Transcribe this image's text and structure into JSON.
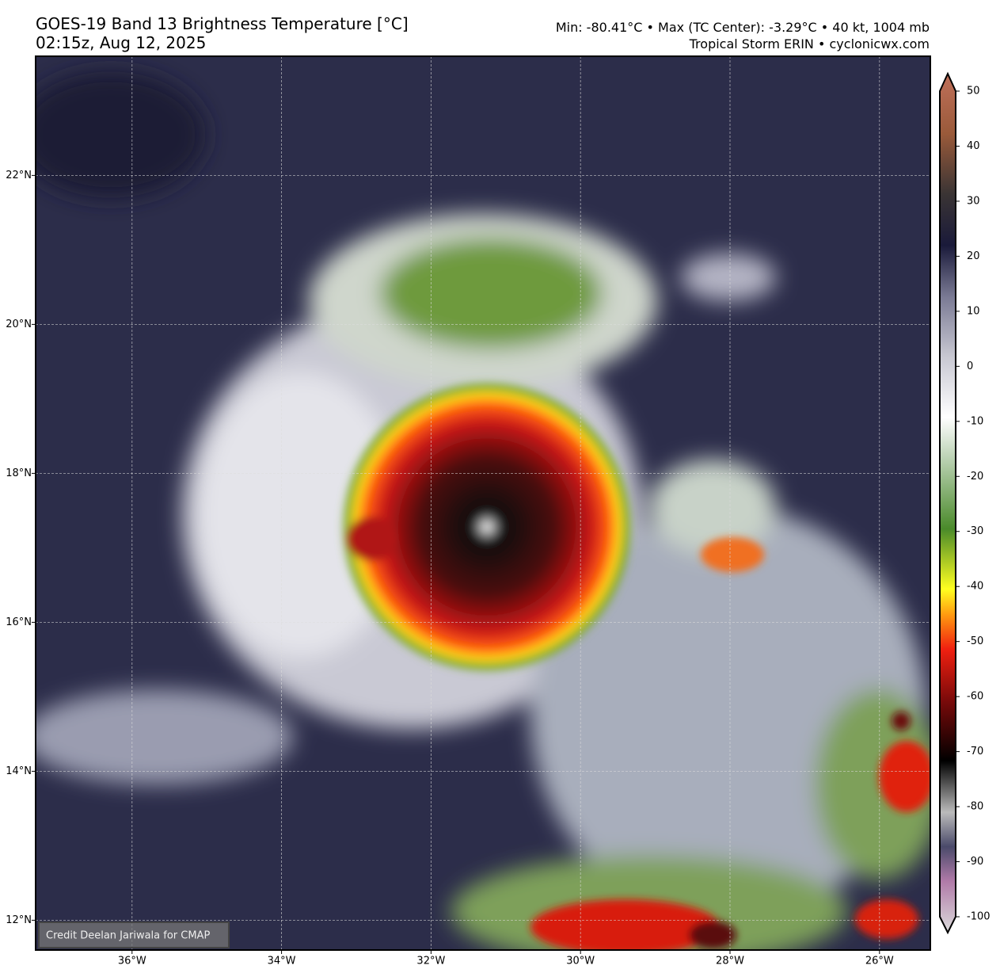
{
  "header": {
    "title": "GOES-19 Band 13 Brightness Temperature [°C]",
    "time": "02:15z, Aug 12, 2025",
    "stats": "Min: -80.41°C • Max (TC Center): -3.29°C • 40 kt, 1004 mb",
    "storm": "Tropical Storm ERIN • cyclonicwx.com"
  },
  "map": {
    "xlim": [
      -37.29,
      -25.32
    ],
    "ylim": [
      11.6,
      23.6
    ],
    "xticks": [
      {
        "value": -36,
        "label": "36°W"
      },
      {
        "value": -34,
        "label": "34°W"
      },
      {
        "value": -32,
        "label": "32°W"
      },
      {
        "value": -30,
        "label": "30°W"
      },
      {
        "value": -28,
        "label": "28°W"
      },
      {
        "value": -26,
        "label": "26°W"
      }
    ],
    "yticks": [
      {
        "value": 12,
        "label": "12°N"
      },
      {
        "value": 14,
        "label": "14°N"
      },
      {
        "value": 16,
        "label": "16°N"
      },
      {
        "value": 18,
        "label": "18°N"
      },
      {
        "value": 20,
        "label": "20°N"
      },
      {
        "value": 22,
        "label": "22°N"
      }
    ],
    "grid": true,
    "credit": "Credit Deelan Jariwala for CMAP"
  },
  "colorbar": {
    "lim": [
      -100,
      50
    ],
    "ticks": [
      50,
      40,
      30,
      20,
      10,
      0,
      -10,
      -20,
      -30,
      -40,
      -50,
      -60,
      -70,
      -80,
      -90,
      -100
    ]
  }
}
